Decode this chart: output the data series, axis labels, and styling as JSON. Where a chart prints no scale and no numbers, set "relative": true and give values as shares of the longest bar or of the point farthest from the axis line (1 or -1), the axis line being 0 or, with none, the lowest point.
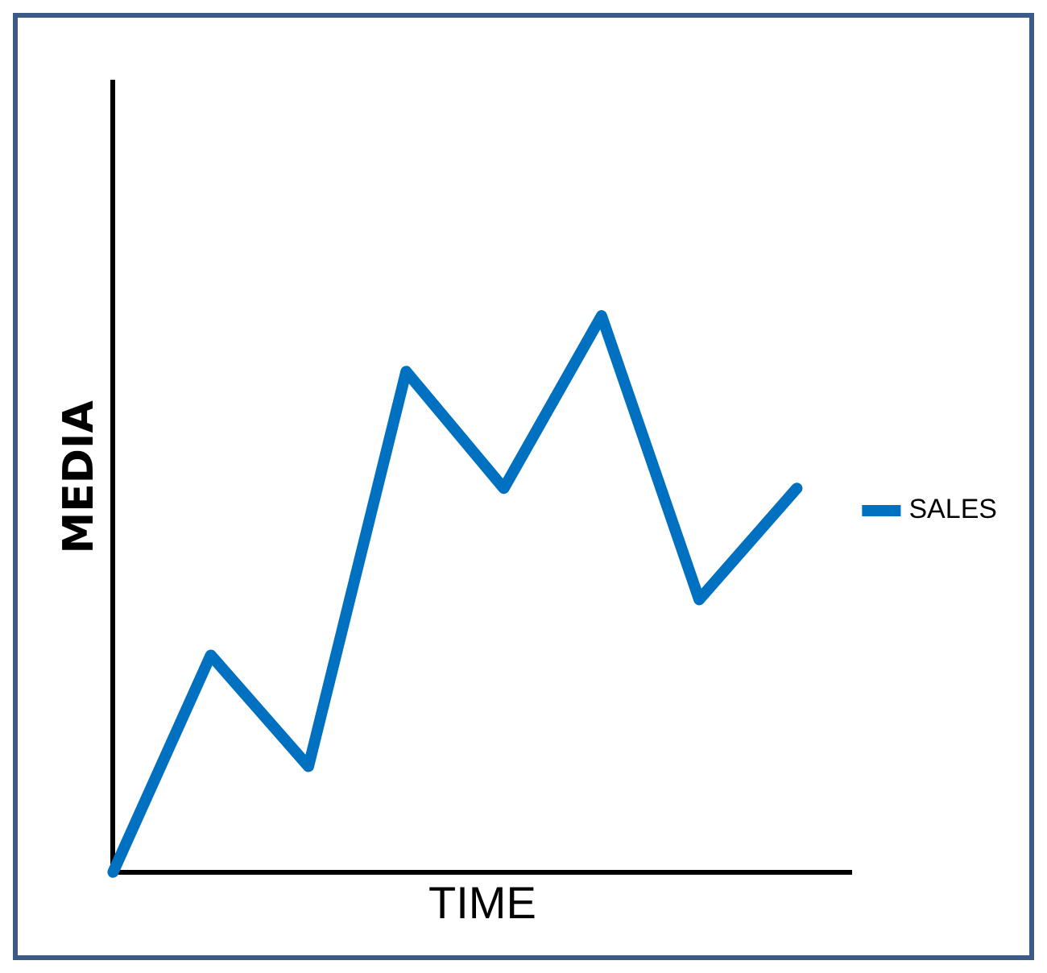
{
  "chart_data": {
    "type": "line",
    "xlabel": "TIME",
    "ylabel": "MEDIA",
    "relative": true,
    "categories": [
      null,
      null,
      null,
      null,
      null,
      null,
      null,
      null
    ],
    "series": [
      {
        "name": "SALES",
        "color": "#0070c0",
        "values": [
          0,
          0.39,
          0.19,
          0.9,
          0.69,
          1,
          0.49,
          0.69
        ]
      }
    ],
    "legend": "right",
    "grid": false,
    "marker": "none",
    "line_style": "solid"
  }
}
